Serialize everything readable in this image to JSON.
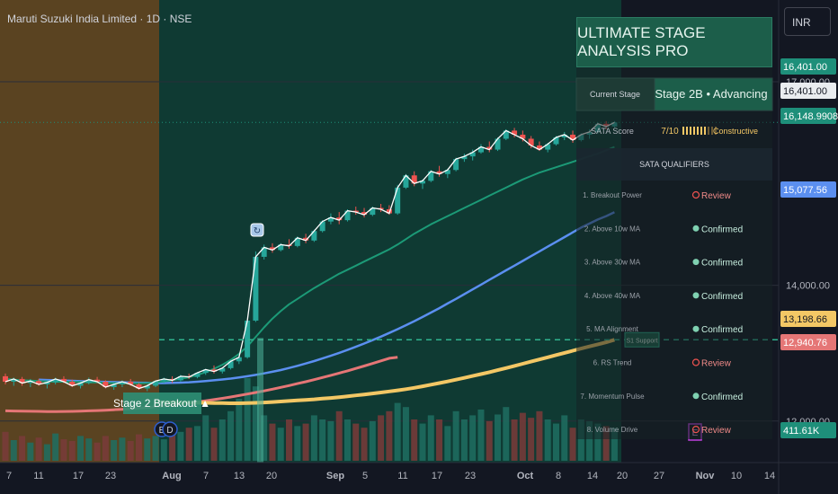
{
  "header": {
    "title": "Maruti Suzuki India Limited · 1D · NSE",
    "currency": "INR"
  },
  "colors": {
    "stage1_bg": "#5a4321",
    "stage2_bg": "#0f3a33",
    "up": "#26a69a",
    "down": "#ef5350",
    "ma10": "#1c9a77",
    "ma30": "#5b8ff0",
    "ma40": "#f3c765",
    "ma200": "#e57676"
  },
  "chart_data": {
    "type": "candlestick",
    "x_tick_labels": [
      "7",
      "11",
      "17",
      "23",
      "Aug",
      "7",
      "13",
      "20",
      "Sep",
      "5",
      "11",
      "17",
      "23",
      "Oct",
      "8",
      "14",
      "20",
      "27",
      "Nov",
      "10",
      "14"
    ],
    "y_tick_labels": [
      "17,000.00",
      "14,000.00",
      "12,000.00"
    ],
    "price_markers": [
      {
        "label": "16,401.00",
        "value": 16401.0,
        "color": "#1e8f7a"
      },
      {
        "label": "16,401.00",
        "value": 16401.0,
        "color": "#e9ecef"
      },
      {
        "label": "16,148.9908",
        "value": 16148.99,
        "color": "#1e8f7a"
      },
      {
        "label": "15,077.56",
        "value": 15077.56,
        "color": "#5b8ff0"
      },
      {
        "label": "13,198.66",
        "value": 13198.66,
        "color": "#f3c765"
      },
      {
        "label": "12,940.76",
        "value": 12940.76,
        "color": "#e57676"
      },
      {
        "label": "411.61K",
        "value": 411610,
        "color": "#1e8f7a"
      }
    ],
    "candles": [
      [
        12660,
        12700,
        12540,
        12580
      ],
      [
        12580,
        12640,
        12520,
        12620
      ],
      [
        12620,
        12650,
        12520,
        12560
      ],
      [
        12560,
        12620,
        12500,
        12590
      ],
      [
        12590,
        12620,
        12520,
        12540
      ],
      [
        12540,
        12600,
        12480,
        12570
      ],
      [
        12570,
        12640,
        12540,
        12620
      ],
      [
        12620,
        12660,
        12560,
        12580
      ],
      [
        12580,
        12610,
        12500,
        12520
      ],
      [
        12520,
        12580,
        12480,
        12560
      ],
      [
        12560,
        12640,
        12540,
        12610
      ],
      [
        12610,
        12650,
        12560,
        12580
      ],
      [
        12580,
        12600,
        12480,
        12500
      ],
      [
        12500,
        12560,
        12460,
        12540
      ],
      [
        12540,
        12600,
        12500,
        12580
      ],
      [
        12580,
        12620,
        12520,
        12540
      ],
      [
        12540,
        12560,
        12460,
        12480
      ],
      [
        12480,
        12540,
        12440,
        12520
      ],
      [
        12520,
        12600,
        12500,
        12590
      ],
      [
        12590,
        12640,
        12560,
        12620
      ],
      [
        12620,
        12660,
        12560,
        12600
      ],
      [
        12600,
        12680,
        12580,
        12660
      ],
      [
        12660,
        12700,
        12620,
        12650
      ],
      [
        12650,
        12720,
        12630,
        12710
      ],
      [
        12710,
        12770,
        12680,
        12760
      ],
      [
        12760,
        12820,
        12700,
        12730
      ],
      [
        12730,
        12790,
        12700,
        12780
      ],
      [
        12780,
        12900,
        12760,
        12880
      ],
      [
        12880,
        12960,
        12840,
        12940
      ],
      [
        12940,
        13500,
        12920,
        13480
      ],
      [
        13480,
        14500,
        13460,
        14420
      ],
      [
        14420,
        14600,
        14380,
        14560
      ],
      [
        14560,
        14620,
        14480,
        14520
      ],
      [
        14520,
        14620,
        14500,
        14600
      ],
      [
        14600,
        14680,
        14540,
        14580
      ],
      [
        14580,
        14720,
        14560,
        14700
      ],
      [
        14700,
        14760,
        14620,
        14660
      ],
      [
        14660,
        14820,
        14640,
        14800
      ],
      [
        14800,
        14960,
        14780,
        14940
      ],
      [
        14940,
        15060,
        14900,
        15000
      ],
      [
        15000,
        15080,
        14900,
        14960
      ],
      [
        14960,
        15120,
        14940,
        15100
      ],
      [
        15100,
        15160,
        15040,
        15080
      ],
      [
        15080,
        15140,
        15000,
        15040
      ],
      [
        15040,
        15160,
        15020,
        15140
      ],
      [
        15140,
        15200,
        15080,
        15120
      ],
      [
        15120,
        15180,
        15040,
        15060
      ],
      [
        15060,
        15480,
        15040,
        15440
      ],
      [
        15440,
        15640,
        15420,
        15620
      ],
      [
        15620,
        15680,
        15460,
        15500
      ],
      [
        15500,
        15560,
        15420,
        15540
      ],
      [
        15540,
        15700,
        15520,
        15680
      ],
      [
        15680,
        15760,
        15600,
        15640
      ],
      [
        15640,
        15720,
        15580,
        15700
      ],
      [
        15700,
        15880,
        15680,
        15860
      ],
      [
        15860,
        15940,
        15820,
        15900
      ],
      [
        15900,
        16000,
        15840,
        15960
      ],
      [
        15960,
        16080,
        15940,
        16040
      ],
      [
        16040,
        16120,
        15960,
        16000
      ],
      [
        16000,
        16180,
        15980,
        16160
      ],
      [
        16160,
        16300,
        16140,
        16280
      ],
      [
        16280,
        16320,
        16180,
        16220
      ],
      [
        16220,
        16280,
        16120,
        16160
      ],
      [
        16160,
        16200,
        16020,
        16060
      ],
      [
        16060,
        16120,
        15980,
        16000
      ],
      [
        16000,
        16100,
        15960,
        16080
      ],
      [
        16080,
        16200,
        16060,
        16180
      ],
      [
        16180,
        16260,
        16140,
        16220
      ],
      [
        16220,
        16280,
        16100,
        16140
      ],
      [
        16140,
        16240,
        16120,
        16220
      ],
      [
        16220,
        16300,
        16160,
        16260
      ],
      [
        16260,
        16400,
        16240,
        16380
      ],
      [
        16380,
        16420,
        16300,
        16340
      ],
      [
        16340,
        16420,
        16320,
        16401
      ]
    ],
    "volume": [
      0.35,
      0.25,
      0.3,
      0.22,
      0.28,
      0.2,
      0.33,
      0.26,
      0.24,
      0.3,
      0.27,
      0.22,
      0.3,
      0.25,
      0.28,
      0.24,
      0.32,
      0.27,
      0.3,
      0.26,
      0.45,
      0.35,
      0.4,
      0.42,
      0.55,
      0.4,
      0.5,
      0.6,
      0.75,
      1.0,
      0.9,
      0.55,
      0.45,
      0.4,
      0.5,
      0.42,
      0.45,
      0.55,
      0.5,
      0.48,
      0.6,
      0.5,
      0.45,
      0.4,
      0.48,
      0.55,
      0.6,
      0.7,
      0.65,
      0.5,
      0.45,
      0.55,
      0.5,
      0.42,
      0.6,
      0.5,
      0.55,
      0.62,
      0.48,
      0.56,
      0.65,
      0.5,
      0.58,
      0.52,
      0.6,
      0.5,
      0.45,
      0.55,
      0.4,
      0.5,
      0.48,
      0.45,
      0.42,
      0.4
    ],
    "ma10": [
      12620,
      12610,
      12600,
      12595,
      12590,
      12585,
      12580,
      12580,
      12578,
      12575,
      12572,
      12570,
      12565,
      12560,
      12555,
      12555,
      12555,
      12560,
      12570,
      12585,
      12600,
      12620,
      12645,
      12680,
      12720,
      12770,
      12830,
      12900,
      12990,
      13100,
      13240,
      13380,
      13510,
      13620,
      13720,
      13800,
      13880,
      13960,
      14030,
      14100,
      14170,
      14230,
      14290,
      14350,
      14410,
      14470,
      14530,
      14600,
      14680,
      14760,
      14830,
      14900,
      14960,
      15020,
      15080,
      15140,
      15200,
      15260,
      15320,
      15380,
      15440,
      15500,
      15560,
      15610,
      15660,
      15700,
      15740,
      15780,
      15820,
      15860,
      15900,
      15940,
      15990,
      16040
    ],
    "ma30": [
      12610,
      12605,
      12600,
      12596,
      12592,
      12588,
      12584,
      12580,
      12577,
      12574,
      12571,
      12568,
      12565,
      12562,
      12560,
      12560,
      12562,
      12566,
      12572,
      12580,
      12590,
      12600,
      12612,
      12626,
      12642,
      12660,
      12680,
      12702,
      12726,
      12752,
      12782,
      12814,
      12848,
      12884,
      12922,
      12962,
      13004,
      13048,
      13094,
      13142,
      13192,
      13244,
      13298,
      13354,
      13412,
      13472,
      13534,
      13598,
      13664,
      13732,
      13800,
      13870,
      13940,
      14010,
      14080,
      14150,
      14220,
      14290,
      14360,
      14430,
      14500,
      14570,
      14640,
      14710,
      14780,
      14850,
      14910,
      14970,
      15020,
      15077
    ],
    "ma40": [
      12280,
      12278,
      12276,
      12274,
      12272,
      12270,
      12268,
      12266,
      12264,
      12262,
      12262,
      12264,
      12268,
      12274,
      12280,
      12288,
      12296,
      12304,
      12312,
      12320,
      12330,
      12340,
      12352,
      12364,
      12378,
      12392,
      12406,
      12420,
      12436,
      12452,
      12470,
      12490,
      12512,
      12536,
      12560,
      12584,
      12610,
      12636,
      12664,
      12692,
      12720,
      12750,
      12780,
      12812,
      12844,
      12876,
      12908,
      12940,
      12972,
      13004,
      13036,
      13068,
      13100,
      13130,
      13160,
      13198
    ],
    "ma200": [
      12150,
      12148,
      12146,
      12144,
      12142,
      12140,
      12140,
      12141,
      12143,
      12146,
      12150,
      12155,
      12160,
      12166,
      12173,
      12181,
      12190,
      12200,
      12211,
      12223,
      12236,
      12250,
      12265,
      12281,
      12298,
      12316,
      12335,
      12355,
      12376,
      12398,
      12421,
      12445,
      12470,
      12496,
      12523,
      12551,
      12580,
      12610,
      12641,
      12673,
      12706,
      12740,
      12775,
      12811,
      12848,
      12886,
      12925,
      12940
    ],
    "support_level": 13198,
    "annotations": {
      "breakout_label": "Stage 2 Breakout ▲",
      "support_label": "S1 Support",
      "earnings_badge": "E",
      "dividend_badge": "D",
      "event_icon": "refresh-icon"
    }
  },
  "panel": {
    "title": "ULTIMATE STAGE ANALYSIS PRO",
    "current_stage_label": "Current Stage",
    "current_stage_value": "Stage 2B • Advancing",
    "sata_score_label": "SATA Score",
    "sata_score_value": "7/10",
    "sata_score_filled": 7,
    "sata_score_total": 10,
    "sata_score_text": "Constructive",
    "qualifiers_header": "SATA QUALIFIERS",
    "qualifiers": [
      {
        "label": "1. Breakout Power",
        "status": "Review",
        "confirmed": false
      },
      {
        "label": "2. Above 10w MA",
        "status": "Confirmed",
        "confirmed": true
      },
      {
        "label": "3. Above 30w MA",
        "status": "Confirmed",
        "confirmed": true
      },
      {
        "label": "4. Above 40w MA",
        "status": "Confirmed",
        "confirmed": true
      },
      {
        "label": "5. MA Alignment",
        "status": "Confirmed",
        "confirmed": true
      },
      {
        "label": "6. RS Trend",
        "status": "Review",
        "confirmed": false
      },
      {
        "label": "7. Momentum Pulse",
        "status": "Confirmed",
        "confirmed": true
      },
      {
        "label": "8. Volume Drive",
        "status": "Review",
        "confirmed": false
      }
    ]
  }
}
